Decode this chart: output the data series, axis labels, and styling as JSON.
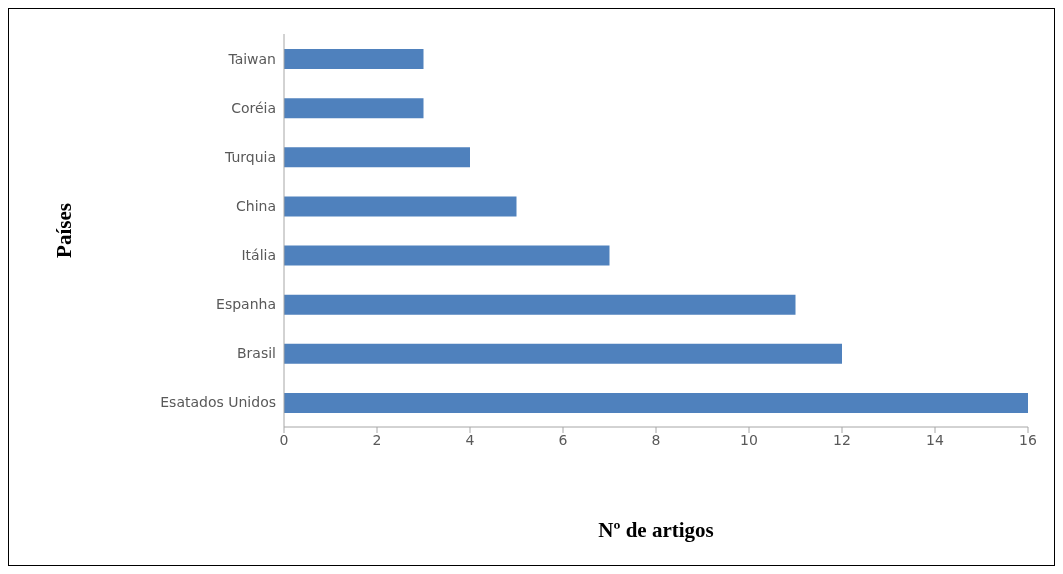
{
  "chart_data": {
    "type": "bar",
    "orientation": "horizontal",
    "xlabel": "Nº de artigos",
    "ylabel": "Países",
    "categories": [
      "Taiwan",
      "Coréia",
      "Turquia",
      "China",
      "Itália",
      "Espanha",
      "Brasil",
      "Esatados Unidos"
    ],
    "values": [
      3,
      3,
      4,
      5,
      7,
      11,
      12,
      16
    ],
    "color": "#4f81bd",
    "xlim": [
      0,
      16
    ],
    "xticks": [
      0,
      2,
      4,
      6,
      8,
      10,
      12,
      14,
      16
    ],
    "grid": false,
    "legend": false
  }
}
